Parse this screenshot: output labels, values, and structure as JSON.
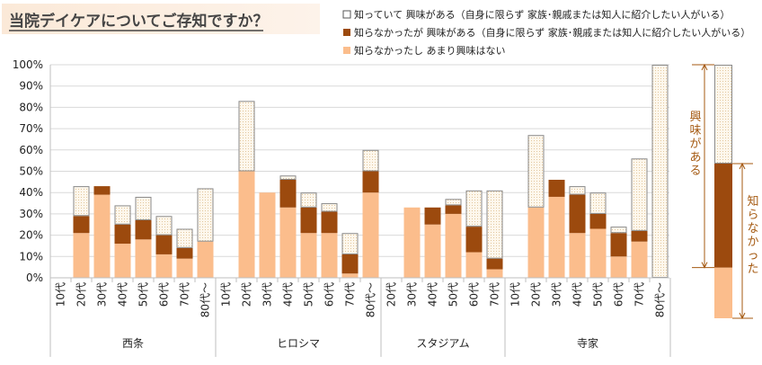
{
  "chart_data": {
    "type": "bar",
    "stacked": true,
    "title": "当院デイケアについてご存知ですか？",
    "ylim": [
      0,
      100
    ],
    "yticks": [
      "0%",
      "10%",
      "20%",
      "30%",
      "40%",
      "50%",
      "60%",
      "70%",
      "80%",
      "90%",
      "100%"
    ],
    "legend": [
      "知っていて 興味がある（自身に限らず 家族･親戚または知人に紹介したい人がいる）",
      "知らなかったが 興味がある（自身に限らず 家族･親戚または知人に紹介したい人がいる）",
      "知らなかったし あまり興味はない"
    ],
    "colors": {
      "know_interested": "#fdf7ec",
      "unknown_interested": "#9c4a0e",
      "not_interested": "#fbbd8c",
      "annotation": "#a55a12"
    },
    "groups": [
      {
        "name": "西条",
        "categories": [
          "10代",
          "20代",
          "30代",
          "40代",
          "50代",
          "60代",
          "70代",
          "80代～"
        ],
        "not_interested": [
          0,
          21,
          39,
          16,
          18,
          11,
          9,
          17
        ],
        "unknown_interested": [
          0,
          8,
          4,
          9,
          9,
          9,
          5,
          0
        ],
        "know_interested": [
          0,
          14,
          0,
          9,
          11,
          9,
          9,
          25
        ]
      },
      {
        "name": "ヒロシマ",
        "categories": [
          "10代",
          "20代",
          "30代",
          "40代",
          "50代",
          "60代",
          "70代",
          "80代～"
        ],
        "not_interested": [
          0,
          50,
          40,
          33,
          21,
          21,
          2,
          40
        ],
        "unknown_interested": [
          0,
          0,
          0,
          13,
          12,
          10,
          9,
          10
        ],
        "know_interested": [
          0,
          33,
          0,
          2,
          7,
          4,
          10,
          10
        ]
      },
      {
        "name": "スタジアム",
        "categories": [
          "20代",
          "30代",
          "40代",
          "50代",
          "60代",
          "70代"
        ],
        "not_interested": [
          0,
          33,
          25,
          30,
          12,
          4
        ],
        "unknown_interested": [
          0,
          0,
          8,
          4,
          12,
          5
        ],
        "know_interested": [
          0,
          0,
          0,
          3,
          17,
          32
        ]
      },
      {
        "name": "寺家",
        "categories": [
          "10代",
          "20代",
          "30代",
          "40代",
          "50代",
          "60代",
          "70代",
          "80代～"
        ],
        "not_interested": [
          0,
          33,
          38,
          21,
          23,
          10,
          17,
          0
        ],
        "unknown_interested": [
          0,
          0,
          8,
          18,
          7,
          11,
          5,
          0
        ],
        "know_interested": [
          0,
          34,
          0,
          4,
          10,
          3,
          34,
          100
        ]
      }
    ],
    "side_bar": {
      "not_interested": 20,
      "unknown_interested": 41,
      "know_interested": 39
    },
    "annotations": {
      "interested": "興味がある",
      "unknown": "知らなかった"
    }
  }
}
